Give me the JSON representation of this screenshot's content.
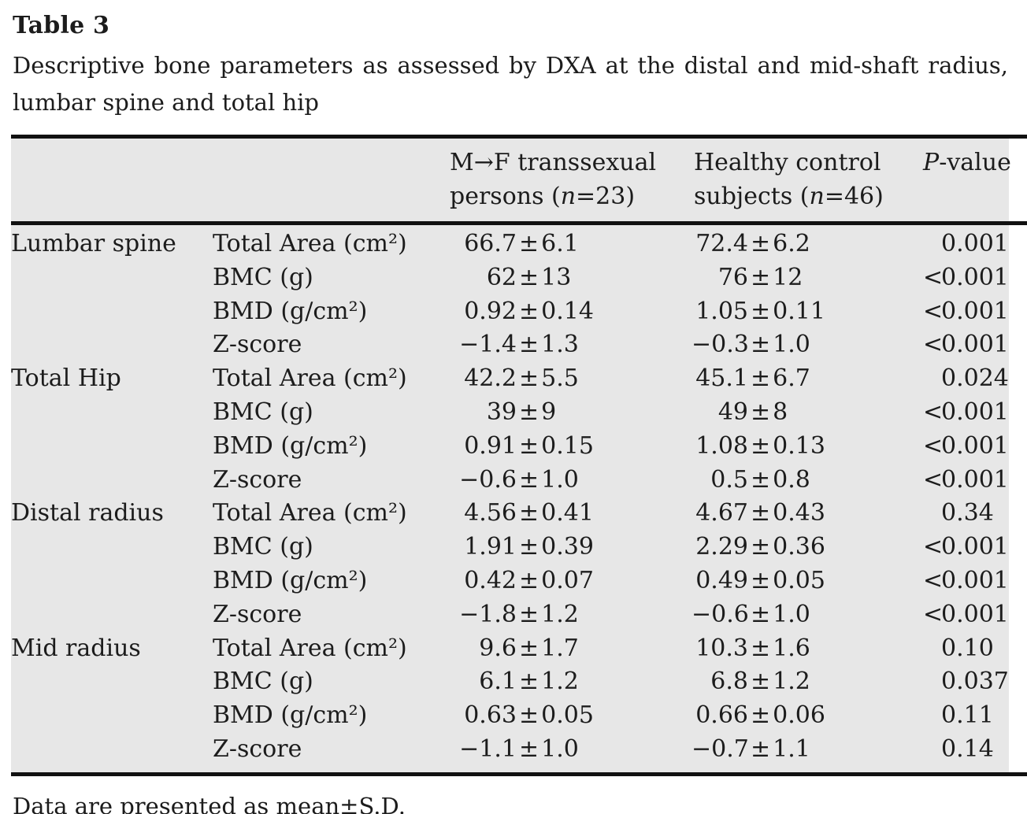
{
  "title": "Table 3",
  "caption": "Descriptive bone parameters as assessed by DXA at the distal and mid-shaft radius, lumbar spine and total hip",
  "footnote": "Data are presented as mean±S.D.",
  "colors": {
    "table_background": "#e7e7e7",
    "rule": "#111111",
    "text": "#1c1c1c",
    "page_background": "#ffffff"
  },
  "table": {
    "symbols": {
      "pm": "±",
      "lt": "<"
    },
    "header": {
      "transsexual": {
        "line1": "M→F transsexual",
        "line2_pre": "persons (",
        "n": "n",
        "line2_post": "=23)"
      },
      "control": {
        "line1": "Healthy control",
        "line2_pre": "subjects (",
        "n": "n",
        "line2_post": "=46)"
      },
      "pvalue": {
        "symbol": "P",
        "suffix": "-value"
      }
    },
    "rows": [
      {
        "group": "Lumbar spine",
        "param": "Total Area (cm²)",
        "m1": "66.7",
        "s1": "6.1",
        "m2": "72.4",
        "s2": "6.2",
        "plt": "",
        "p": "0.001"
      },
      {
        "group": "",
        "param": "BMC (g)",
        "m1": "62",
        "s1": "13",
        "m2": "76",
        "s2": "12",
        "plt": "<",
        "p": "0.001"
      },
      {
        "group": "",
        "param": "BMD (g/cm²)",
        "m1": "0.92",
        "s1": "0.14",
        "m2": "1.05",
        "s2": "0.11",
        "plt": "<",
        "p": "0.001"
      },
      {
        "group": "",
        "param": "Z-score",
        "m1": "−1.4",
        "s1": "1.3",
        "m2": "−0.3",
        "s2": "1.0",
        "plt": "<",
        "p": "0.001"
      },
      {
        "group": "Total Hip",
        "param": "Total Area (cm²)",
        "m1": "42.2",
        "s1": "5.5",
        "m2": "45.1",
        "s2": "6.7",
        "plt": "",
        "p": "0.024"
      },
      {
        "group": "",
        "param": "BMC (g)",
        "m1": "39",
        "s1": "9",
        "m2": "49",
        "s2": "8",
        "plt": "<",
        "p": "0.001"
      },
      {
        "group": "",
        "param": "BMD (g/cm²)",
        "m1": "0.91",
        "s1": "0.15",
        "m2": "1.08",
        "s2": "0.13",
        "plt": "<",
        "p": "0.001"
      },
      {
        "group": "",
        "param": "Z-score",
        "m1": "−0.6",
        "s1": "1.0",
        "m2": "0.5",
        "s2": "0.8",
        "plt": "<",
        "p": "0.001"
      },
      {
        "group": "Distal radius",
        "param": "Total Area (cm²)",
        "m1": "4.56",
        "s1": "0.41",
        "m2": "4.67",
        "s2": "0.43",
        "plt": "",
        "p": "0.34"
      },
      {
        "group": "",
        "param": "BMC (g)",
        "m1": "1.91",
        "s1": "0.39",
        "m2": "2.29",
        "s2": "0.36",
        "plt": "<",
        "p": "0.001"
      },
      {
        "group": "",
        "param": "BMD (g/cm²)",
        "m1": "0.42",
        "s1": "0.07",
        "m2": "0.49",
        "s2": "0.05",
        "plt": "<",
        "p": "0.001"
      },
      {
        "group": "",
        "param": "Z-score",
        "m1": "−1.8",
        "s1": "1.2",
        "m2": "−0.6",
        "s2": "1.0",
        "plt": "<",
        "p": "0.001"
      },
      {
        "group": "Mid radius",
        "param": "Total Area (cm²)",
        "m1": "9.6",
        "s1": "1.7",
        "m2": "10.3",
        "s2": "1.6",
        "plt": "",
        "p": "0.10"
      },
      {
        "group": "",
        "param": "BMC (g)",
        "m1": "6.1",
        "s1": "1.2",
        "m2": "6.8",
        "s2": "1.2",
        "plt": "",
        "p": "0.037"
      },
      {
        "group": "",
        "param": "BMD (g/cm²)",
        "m1": "0.63",
        "s1": "0.05",
        "m2": "0.66",
        "s2": "0.06",
        "plt": "",
        "p": "0.11"
      },
      {
        "group": "",
        "param": "Z-score",
        "m1": "−1.1",
        "s1": "1.0",
        "m2": "−0.7",
        "s2": "1.1",
        "plt": "",
        "p": "0.14"
      }
    ]
  }
}
